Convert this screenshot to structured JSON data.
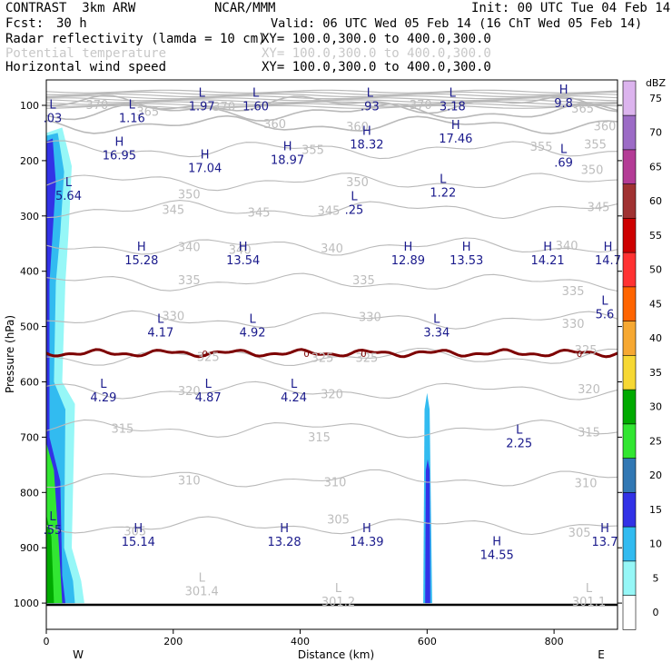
{
  "header": {
    "model": "CONTRAST  3km ARW",
    "center": "NCAR/MMM",
    "init": "Init: 00 UTC Tue 04 Feb 14",
    "fcst_label": "Fcst:",
    "fcst_value": "30 h",
    "valid": "Valid: 06 UTC Wed 05 Feb 14 (16 ChT Wed 05 Feb 14)",
    "fields": [
      {
        "name": "Radar reflectivity (lamda = 10 cm)",
        "xy": "XY= 100.0,300.0 to 400.0,300.0"
      },
      {
        "name": "Potential temperature",
        "xy": "XY= 100.0,300.0 to 400.0,300.0"
      },
      {
        "name": "Horizontal wind speed",
        "xy": "XY= 100.0,300.0 to 400.0,300.0"
      }
    ]
  },
  "chart_data": {
    "type": "cross-section",
    "xlabel": "Distance (km)",
    "ylabel": "Pressure (hPa)",
    "xlim": [
      0,
      900
    ],
    "ylim": [
      1050,
      60
    ],
    "x_ticks": [
      0,
      200,
      400,
      600,
      800
    ],
    "y_ticks": [
      100,
      200,
      300,
      400,
      500,
      600,
      700,
      800,
      900,
      1000
    ],
    "x_end_labels": [
      "W",
      "E"
    ],
    "colorbar": {
      "unit": "dBZ",
      "levels": [
        0,
        5,
        10,
        15,
        20,
        25,
        30,
        35,
        40,
        45,
        50,
        55,
        60,
        65,
        70,
        75
      ],
      "colors": [
        "#ffffff",
        "#96f7f7",
        "#32bbf0",
        "#3232e6",
        "#3278b4",
        "#32e632",
        "#00aa00",
        "#f6d834",
        "#f6a832",
        "#ff6400",
        "#ff3232",
        "#cd0000",
        "#a03232",
        "#b43c96",
        "#9c6bc6",
        "#dcb4ee"
      ]
    },
    "theta_contours": {
      "color": "#b9b9b9",
      "levels": [
        {
          "label": "305",
          "p": 860
        },
        {
          "label": "310",
          "p": 775
        },
        {
          "label": "315",
          "p": 685
        },
        {
          "label": "320",
          "p": 616
        },
        {
          "label": "325",
          "p": 555
        },
        {
          "label": "330",
          "p": 488
        },
        {
          "label": "335",
          "p": 420
        },
        {
          "label": "340",
          "p": 355
        },
        {
          "label": "345",
          "p": 288
        },
        {
          "label": "350",
          "p": 238
        },
        {
          "label": "355",
          "p": 180
        },
        {
          "label": "360",
          "p": 135
        },
        {
          "label": "365",
          "p": 112
        },
        {
          "label": "370",
          "p": 98
        }
      ],
      "labels": [
        {
          "text": "305",
          "x": 140,
          "p": 869
        },
        {
          "text": "305",
          "x": 460,
          "p": 848
        },
        {
          "text": "305",
          "x": 840,
          "p": 872
        },
        {
          "text": "310",
          "x": 225,
          "p": 777
        },
        {
          "text": "310",
          "x": 455,
          "p": 781
        },
        {
          "text": "310",
          "x": 850,
          "p": 782
        },
        {
          "text": "315",
          "x": 120,
          "p": 684
        },
        {
          "text": "315",
          "x": 430,
          "p": 699
        },
        {
          "text": "315",
          "x": 855,
          "p": 690
        },
        {
          "text": "320",
          "x": 225,
          "p": 616
        },
        {
          "text": "320",
          "x": 450,
          "p": 621
        },
        {
          "text": "320",
          "x": 855,
          "p": 612
        },
        {
          "text": "325",
          "x": 255,
          "p": 554
        },
        {
          "text": "325",
          "x": 435,
          "p": 556
        },
        {
          "text": "325",
          "x": 505,
          "p": 556
        },
        {
          "text": "325",
          "x": 850,
          "p": 542
        },
        {
          "text": "330",
          "x": 200,
          "p": 480
        },
        {
          "text": "330",
          "x": 510,
          "p": 482
        },
        {
          "text": "330",
          "x": 830,
          "p": 494
        },
        {
          "text": "335",
          "x": 225,
          "p": 415
        },
        {
          "text": "335",
          "x": 500,
          "p": 415
        },
        {
          "text": "335",
          "x": 830,
          "p": 435
        },
        {
          "text": "340",
          "x": 225,
          "p": 355
        },
        {
          "text": "340",
          "x": 305,
          "p": 360
        },
        {
          "text": "340",
          "x": 450,
          "p": 358
        },
        {
          "text": "340",
          "x": 820,
          "p": 353
        },
        {
          "text": "345",
          "x": 200,
          "p": 288
        },
        {
          "text": "345",
          "x": 335,
          "p": 293
        },
        {
          "text": "345",
          "x": 445,
          "p": 290
        },
        {
          "text": "345",
          "x": 870,
          "p": 283
        },
        {
          "text": "350",
          "x": 225,
          "p": 260
        },
        {
          "text": "350",
          "x": 490,
          "p": 238
        },
        {
          "text": "350",
          "x": 860,
          "p": 216
        },
        {
          "text": "355",
          "x": 420,
          "p": 180
        },
        {
          "text": "355",
          "x": 780,
          "p": 174
        },
        {
          "text": "355",
          "x": 865,
          "p": 170
        },
        {
          "text": "360",
          "x": 360,
          "p": 133
        },
        {
          "text": "360",
          "x": 490,
          "p": 138
        },
        {
          "text": "360",
          "x": 880,
          "p": 137
        },
        {
          "text": "365",
          "x": 160,
          "p": 111
        },
        {
          "text": "365",
          "x": 845,
          "p": 105
        },
        {
          "text": "370",
          "x": 80,
          "p": 98
        },
        {
          "text": "370",
          "x": 590,
          "p": 98
        },
        {
          "text": "370",
          "x": 280,
          "p": 102
        }
      ]
    },
    "zero_reflectivity_line": {
      "label": "0",
      "p": 548,
      "color": "#7d0000"
    },
    "wind_extrema": [
      {
        "kind": "L",
        "value": ".03",
        "x": 10,
        "p": 112
      },
      {
        "kind": "L",
        "value": "1.16",
        "x": 135,
        "p": 112
      },
      {
        "kind": "L",
        "value": "1.97",
        "x": 245,
        "p": 91
      },
      {
        "kind": "L",
        "value": "1.60",
        "x": 330,
        "p": 91
      },
      {
        "kind": "L",
        "value": ".93",
        "x": 510,
        "p": 91
      },
      {
        "kind": "L",
        "value": "3.18",
        "x": 640,
        "p": 91
      },
      {
        "kind": "H",
        "value": "9.8",
        "x": 815,
        "p": 85
      },
      {
        "kind": "H",
        "value": "16.95",
        "x": 115,
        "p": 180
      },
      {
        "kind": "H",
        "value": "17.04",
        "x": 250,
        "p": 203
      },
      {
        "kind": "H",
        "value": "18.97",
        "x": 380,
        "p": 188
      },
      {
        "kind": "H",
        "value": "18.32",
        "x": 505,
        "p": 160
      },
      {
        "kind": "H",
        "value": "17.46",
        "x": 645,
        "p": 149
      },
      {
        "kind": "L",
        "value": ".69",
        "x": 815,
        "p": 193
      },
      {
        "kind": "L",
        "value": "5.64",
        "x": 35,
        "p": 253
      },
      {
        "kind": "L",
        "value": ".25",
        "x": 485,
        "p": 278
      },
      {
        "kind": "L",
        "value": "1.22",
        "x": 625,
        "p": 247
      },
      {
        "kind": "H",
        "value": "15.28",
        "x": 150,
        "p": 369
      },
      {
        "kind": "H",
        "value": "13.54",
        "x": 310,
        "p": 369
      },
      {
        "kind": "H",
        "value": "12.89",
        "x": 570,
        "p": 369
      },
      {
        "kind": "H",
        "value": "13.53",
        "x": 662,
        "p": 369
      },
      {
        "kind": "H",
        "value": "14.21",
        "x": 790,
        "p": 369
      },
      {
        "kind": "H",
        "value": "14.7",
        "x": 885,
        "p": 369
      },
      {
        "kind": "L",
        "value": "4.17",
        "x": 180,
        "p": 500
      },
      {
        "kind": "L",
        "value": "4.92",
        "x": 325,
        "p": 500
      },
      {
        "kind": "L",
        "value": "3.34",
        "x": 615,
        "p": 500
      },
      {
        "kind": "L",
        "value": "5.6",
        "x": 880,
        "p": 467
      },
      {
        "kind": "L",
        "value": "4.29",
        "x": 90,
        "p": 617
      },
      {
        "kind": "L",
        "value": "4.87",
        "x": 255,
        "p": 617
      },
      {
        "kind": "L",
        "value": "4.24",
        "x": 390,
        "p": 617
      },
      {
        "kind": "L",
        "value": "2.25",
        "x": 745,
        "p": 700
      },
      {
        "kind": "H",
        "value": "15.14",
        "x": 145,
        "p": 878
      },
      {
        "kind": "H",
        "value": "13.28",
        "x": 375,
        "p": 878
      },
      {
        "kind": "H",
        "value": "14.39",
        "x": 505,
        "p": 878
      },
      {
        "kind": "H",
        "value": "14.55",
        "x": 710,
        "p": 902
      },
      {
        "kind": "H",
        "value": "13.7",
        "x": 880,
        "p": 878
      },
      {
        "kind": "L",
        "value": ".55",
        "x": 10,
        "p": 857
      }
    ],
    "theta_minima": [
      {
        "kind": "L",
        "value": "301.4",
        "x": 245,
        "p": 968
      },
      {
        "kind": "L",
        "value": "301.2",
        "x": 460,
        "p": 987
      },
      {
        "kind": "L",
        "value": "301.1",
        "x": 855,
        "p": 987
      }
    ]
  }
}
